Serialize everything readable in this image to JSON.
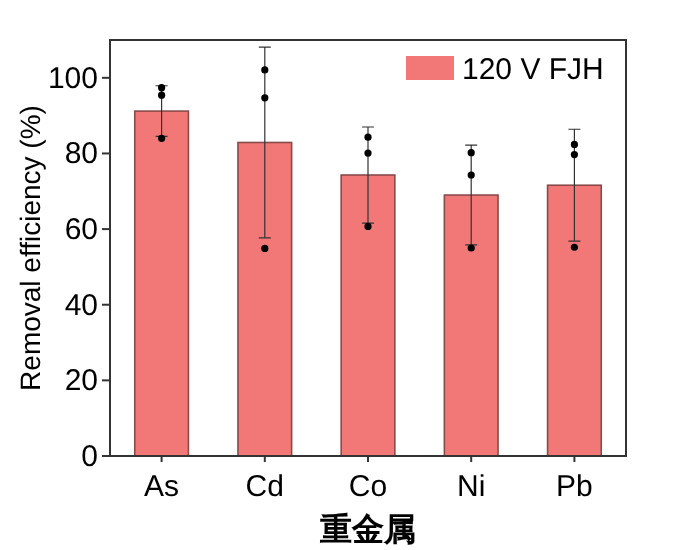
{
  "chart_data": {
    "type": "bar",
    "xlabel": "重金属",
    "ylabel": "Removal efficiency (%)",
    "categories": [
      "As",
      "Cd",
      "Co",
      "Ni",
      "Pb"
    ],
    "series": [
      {
        "name": "120 V FJH",
        "color": "#f27777",
        "values": [
          91.2,
          82.9,
          74.3,
          69.0,
          71.6
        ],
        "errors": [
          6.7,
          25.2,
          12.7,
          13.2,
          14.8
        ]
      },
      {
        "type": "scatter",
        "color": "#000000",
        "x": [
          "As",
          "As",
          "As",
          "Cd",
          "Cd",
          "Cd",
          "Co",
          "Co",
          "Co",
          "Ni",
          "Ni",
          "Ni",
          "Pb",
          "Pb",
          "Pb"
        ],
        "values": [
          97.4,
          95.4,
          84.0,
          102.1,
          94.7,
          54.9,
          84.3,
          80.1,
          60.7,
          80.2,
          74.3,
          55.0,
          82.4,
          79.7,
          55.2
        ]
      }
    ],
    "ylim": [
      0,
      110
    ],
    "yticks": [
      0,
      20,
      40,
      60,
      80,
      100
    ],
    "legend": "top right",
    "marker": "circle",
    "grid": false
  }
}
